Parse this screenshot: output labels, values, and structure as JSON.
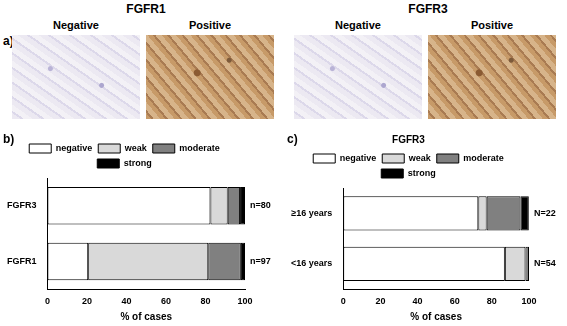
{
  "image_panel": {
    "label": "a)",
    "groups": [
      {
        "title": "FGFR1",
        "images": [
          "Negative",
          "Positive"
        ]
      },
      {
        "title": "FGFR3",
        "images": [
          "Negative",
          "Positive"
        ]
      }
    ]
  },
  "chart_data": [
    {
      "type": "bar",
      "label": "b)",
      "orientation": "horizontal",
      "stacked": true,
      "categories": [
        "FGFR3",
        "FGFR1"
      ],
      "annotations": [
        "n=80",
        "n=97"
      ],
      "series": [
        {
          "name": "negative",
          "color": "#ffffff",
          "values": [
            82.5,
            20.6
          ]
        },
        {
          "name": "weak",
          "color": "#d9d9d9",
          "values": [
            8.75,
            60.8
          ]
        },
        {
          "name": "moderate",
          "color": "#808080",
          "values": [
            6.25,
            16.5
          ]
        },
        {
          "name": "strong",
          "color": "#000000",
          "values": [
            2.5,
            2.1
          ]
        }
      ],
      "xlabel": "% of cases",
      "xlim": [
        0,
        100
      ],
      "xticks": [
        0,
        20,
        40,
        60,
        80,
        100
      ],
      "grid": false,
      "legend": "top"
    },
    {
      "type": "bar",
      "label": "c)",
      "title": "FGFR3",
      "orientation": "horizontal",
      "stacked": true,
      "categories": [
        "≥16 years",
        "<16 years"
      ],
      "annotations": [
        "N=22",
        "N=54"
      ],
      "series": [
        {
          "name": "negative",
          "color": "#ffffff",
          "values": [
            72.7,
            87.0
          ]
        },
        {
          "name": "weak",
          "color": "#d9d9d9",
          "values": [
            4.5,
            11.1
          ]
        },
        {
          "name": "moderate",
          "color": "#808080",
          "values": [
            18.2,
            1.9
          ]
        },
        {
          "name": "strong",
          "color": "#000000",
          "values": [
            4.5,
            0
          ]
        }
      ],
      "xlabel": "% of cases",
      "xlim": [
        0,
        100
      ],
      "xticks": [
        0,
        20,
        40,
        60,
        80,
        100
      ],
      "grid": false,
      "legend": "top"
    }
  ]
}
